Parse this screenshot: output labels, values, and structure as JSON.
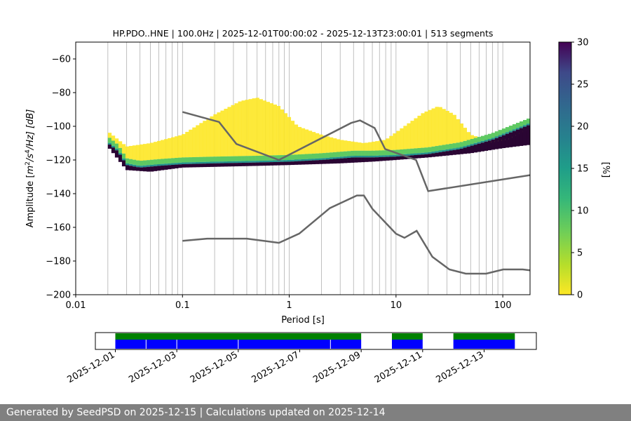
{
  "chart_data": {
    "type": "heatmap",
    "title": "HP.PDO..HNE | 100.0Hz | 2025-12-01T00:00:02 - 2025-12-13T23:00:01 | 513 segments",
    "xlabel": "Period [s]",
    "ylabel_main": "Amplitude [",
    "ylabel_unit": "m",
    "ylabel_sup1": "2",
    "ylabel_mid": "/s",
    "ylabel_sup2": "4",
    "ylabel_end": "/Hz] [dB]",
    "x_scale": "log",
    "xlim": [
      0.01,
      180
    ],
    "ylim": [
      -200,
      -50
    ],
    "x_ticks": [
      {
        "value": 0.01,
        "label": "0.01"
      },
      {
        "value": 0.1,
        "label": "0.1"
      },
      {
        "value": 1,
        "label": "1"
      },
      {
        "value": 10,
        "label": "10"
      },
      {
        "value": 100,
        "label": "100"
      }
    ],
    "y_ticks": [
      {
        "value": -60,
        "label": "−60"
      },
      {
        "value": -80,
        "label": "−80"
      },
      {
        "value": -100,
        "label": "−100"
      },
      {
        "value": -120,
        "label": "−120"
      },
      {
        "value": -140,
        "label": "−140"
      },
      {
        "value": -160,
        "label": "−160"
      },
      {
        "value": -180,
        "label": "−180"
      },
      {
        "value": -200,
        "label": "−200"
      }
    ],
    "grid": "vertical-period-lines",
    "colorbar": {
      "label": "[%]",
      "range": [
        0,
        30
      ],
      "ticks": [
        {
          "value": 0,
          "label": "0"
        },
        {
          "value": 5,
          "label": "5"
        },
        {
          "value": 10,
          "label": "10"
        },
        {
          "value": 15,
          "label": "15"
        },
        {
          "value": 20,
          "label": "20"
        },
        {
          "value": 25,
          "label": "25"
        },
        {
          "value": 30,
          "label": "30"
        }
      ],
      "colormap": [
        "#fde725",
        "#5ec962",
        "#21918c",
        "#3b528b",
        "#440154",
        "#2a0533"
      ]
    },
    "nhnm": {
      "name": "NHNM",
      "x": [
        0.1,
        0.22,
        0.32,
        0.8,
        3.8,
        4.6,
        6.3,
        7.9,
        15.4,
        20,
        180
      ],
      "y": [
        -91.5,
        -97.4,
        -110.5,
        -120,
        -98,
        -96.5,
        -101,
        -113.5,
        -120,
        -138.5,
        -129
      ]
    },
    "nlnm": {
      "name": "NLNM",
      "x": [
        0.1,
        0.17,
        0.4,
        0.8,
        1.24,
        2.4,
        4.3,
        5,
        6,
        10,
        12,
        15.6,
        21.9,
        31.6,
        45,
        70,
        101,
        154,
        180
      ],
      "y": [
        -168,
        -166.7,
        -166.7,
        -169.2,
        -163.7,
        -148.6,
        -141.1,
        -141.1,
        -149,
        -163.8,
        -166.2,
        -162.1,
        -177.5,
        -185,
        -187.5,
        -187.5,
        -185,
        -185,
        -185.5
      ]
    },
    "ppsd_mode": {
      "name": "mode",
      "x": [
        0.02,
        0.025,
        0.03,
        0.04,
        0.06,
        0.1,
        0.2,
        0.5,
        1,
        2,
        4,
        6,
        10,
        20,
        40,
        80,
        150,
        180
      ],
      "y": [
        -110,
        -115,
        -123,
        -124.5,
        -123.5,
        -122.5,
        -122,
        -121.5,
        -121,
        -120,
        -118.5,
        -118.5,
        -118,
        -116.5,
        -113.5,
        -108,
        -101,
        -99
      ]
    },
    "ppsd_upper": {
      "name": "upper-envelope",
      "x": [
        0.02,
        0.03,
        0.05,
        0.1,
        0.2,
        0.35,
        0.5,
        0.8,
        1.2,
        2,
        3,
        5,
        8,
        12,
        18,
        25,
        35,
        50,
        80,
        120,
        180
      ],
      "y": [
        -103,
        -112,
        -110,
        -105,
        -93,
        -85,
        -83,
        -88,
        -100,
        -105,
        -108,
        -110,
        -108,
        -100,
        -92,
        -88,
        -93,
        -105,
        -109,
        -107,
        -101
      ]
    },
    "ppsd_lower": {
      "name": "lower-envelope",
      "x": [
        0.02,
        0.03,
        0.05,
        0.1,
        0.5,
        1,
        3,
        6,
        10,
        20,
        50,
        100,
        180
      ],
      "y": [
        -112,
        -126,
        -127,
        -124.5,
        -123.5,
        -123,
        -122,
        -121,
        -120,
        -118.5,
        -116,
        -113,
        -111
      ]
    }
  },
  "timeline": {
    "ticks": [
      "2025-12-01",
      "2025-12-03",
      "2025-12-05",
      "2025-12-07",
      "2025-12-09",
      "2025-12-11",
      "2025-12-13"
    ],
    "day_range": [
      -0.65,
      13.7
    ],
    "coverage_days": [
      [
        0,
        8.0
      ],
      [
        9.0,
        10.0
      ],
      [
        11.0,
        13.0
      ]
    ],
    "segment_marks": [
      1.0,
      2.0,
      4.0,
      7.0
    ],
    "bar_colors": {
      "data": "#0000ff",
      "used": "#008000"
    }
  },
  "footer": {
    "text": "Generated by SeedPSD on 2025-12-15 | Calculations updated on 2025-12-14"
  }
}
